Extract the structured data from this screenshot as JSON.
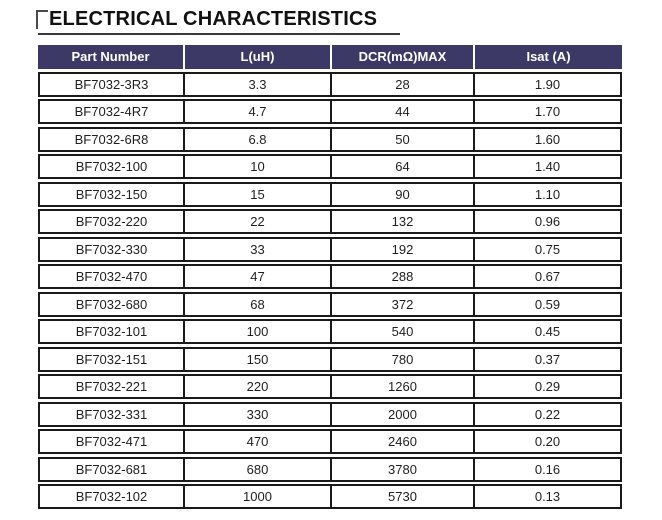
{
  "page": {
    "title": "ELECTRICAL CHARACTERISTICS"
  },
  "table": {
    "headers": [
      "Part Number",
      "L(uH)",
      "DCR(mΩ)MAX",
      "Isat (A)"
    ],
    "rows": [
      [
        "BF7032-3R3",
        "3.3",
        "28",
        "1.90"
      ],
      [
        "BF7032-4R7",
        "4.7",
        "44",
        "1.70"
      ],
      [
        "BF7032-6R8",
        "6.8",
        "50",
        "1.60"
      ],
      [
        "BF7032-100",
        "10",
        "64",
        "1.40"
      ],
      [
        "BF7032-150",
        "15",
        "90",
        "1.10"
      ],
      [
        "BF7032-220",
        "22",
        "132",
        "0.96"
      ],
      [
        "BF7032-330",
        "33",
        "192",
        "0.75"
      ],
      [
        "BF7032-470",
        "47",
        "288",
        "0.67"
      ],
      [
        "BF7032-680",
        "68",
        "372",
        "0.59"
      ],
      [
        "BF7032-101",
        "100",
        "540",
        "0.45"
      ],
      [
        "BF7032-151",
        "150",
        "780",
        "0.37"
      ],
      [
        "BF7032-221",
        "220",
        "1260",
        "0.29"
      ],
      [
        "BF7032-331",
        "330",
        "2000",
        "0.22"
      ],
      [
        "BF7032-471",
        "470",
        "2460",
        "0.20"
      ],
      [
        "BF7032-681",
        "680",
        "3780",
        "0.16"
      ],
      [
        "BF7032-102",
        "1000",
        "5730",
        "0.13"
      ]
    ]
  },
  "colors": {
    "header_bg": "#3d3966",
    "header_text": "#ffffff",
    "row_border": "#1a1a1a",
    "title_text": "#111111",
    "underline": "#3a3a3a",
    "bracket": "#4a4a4a"
  }
}
